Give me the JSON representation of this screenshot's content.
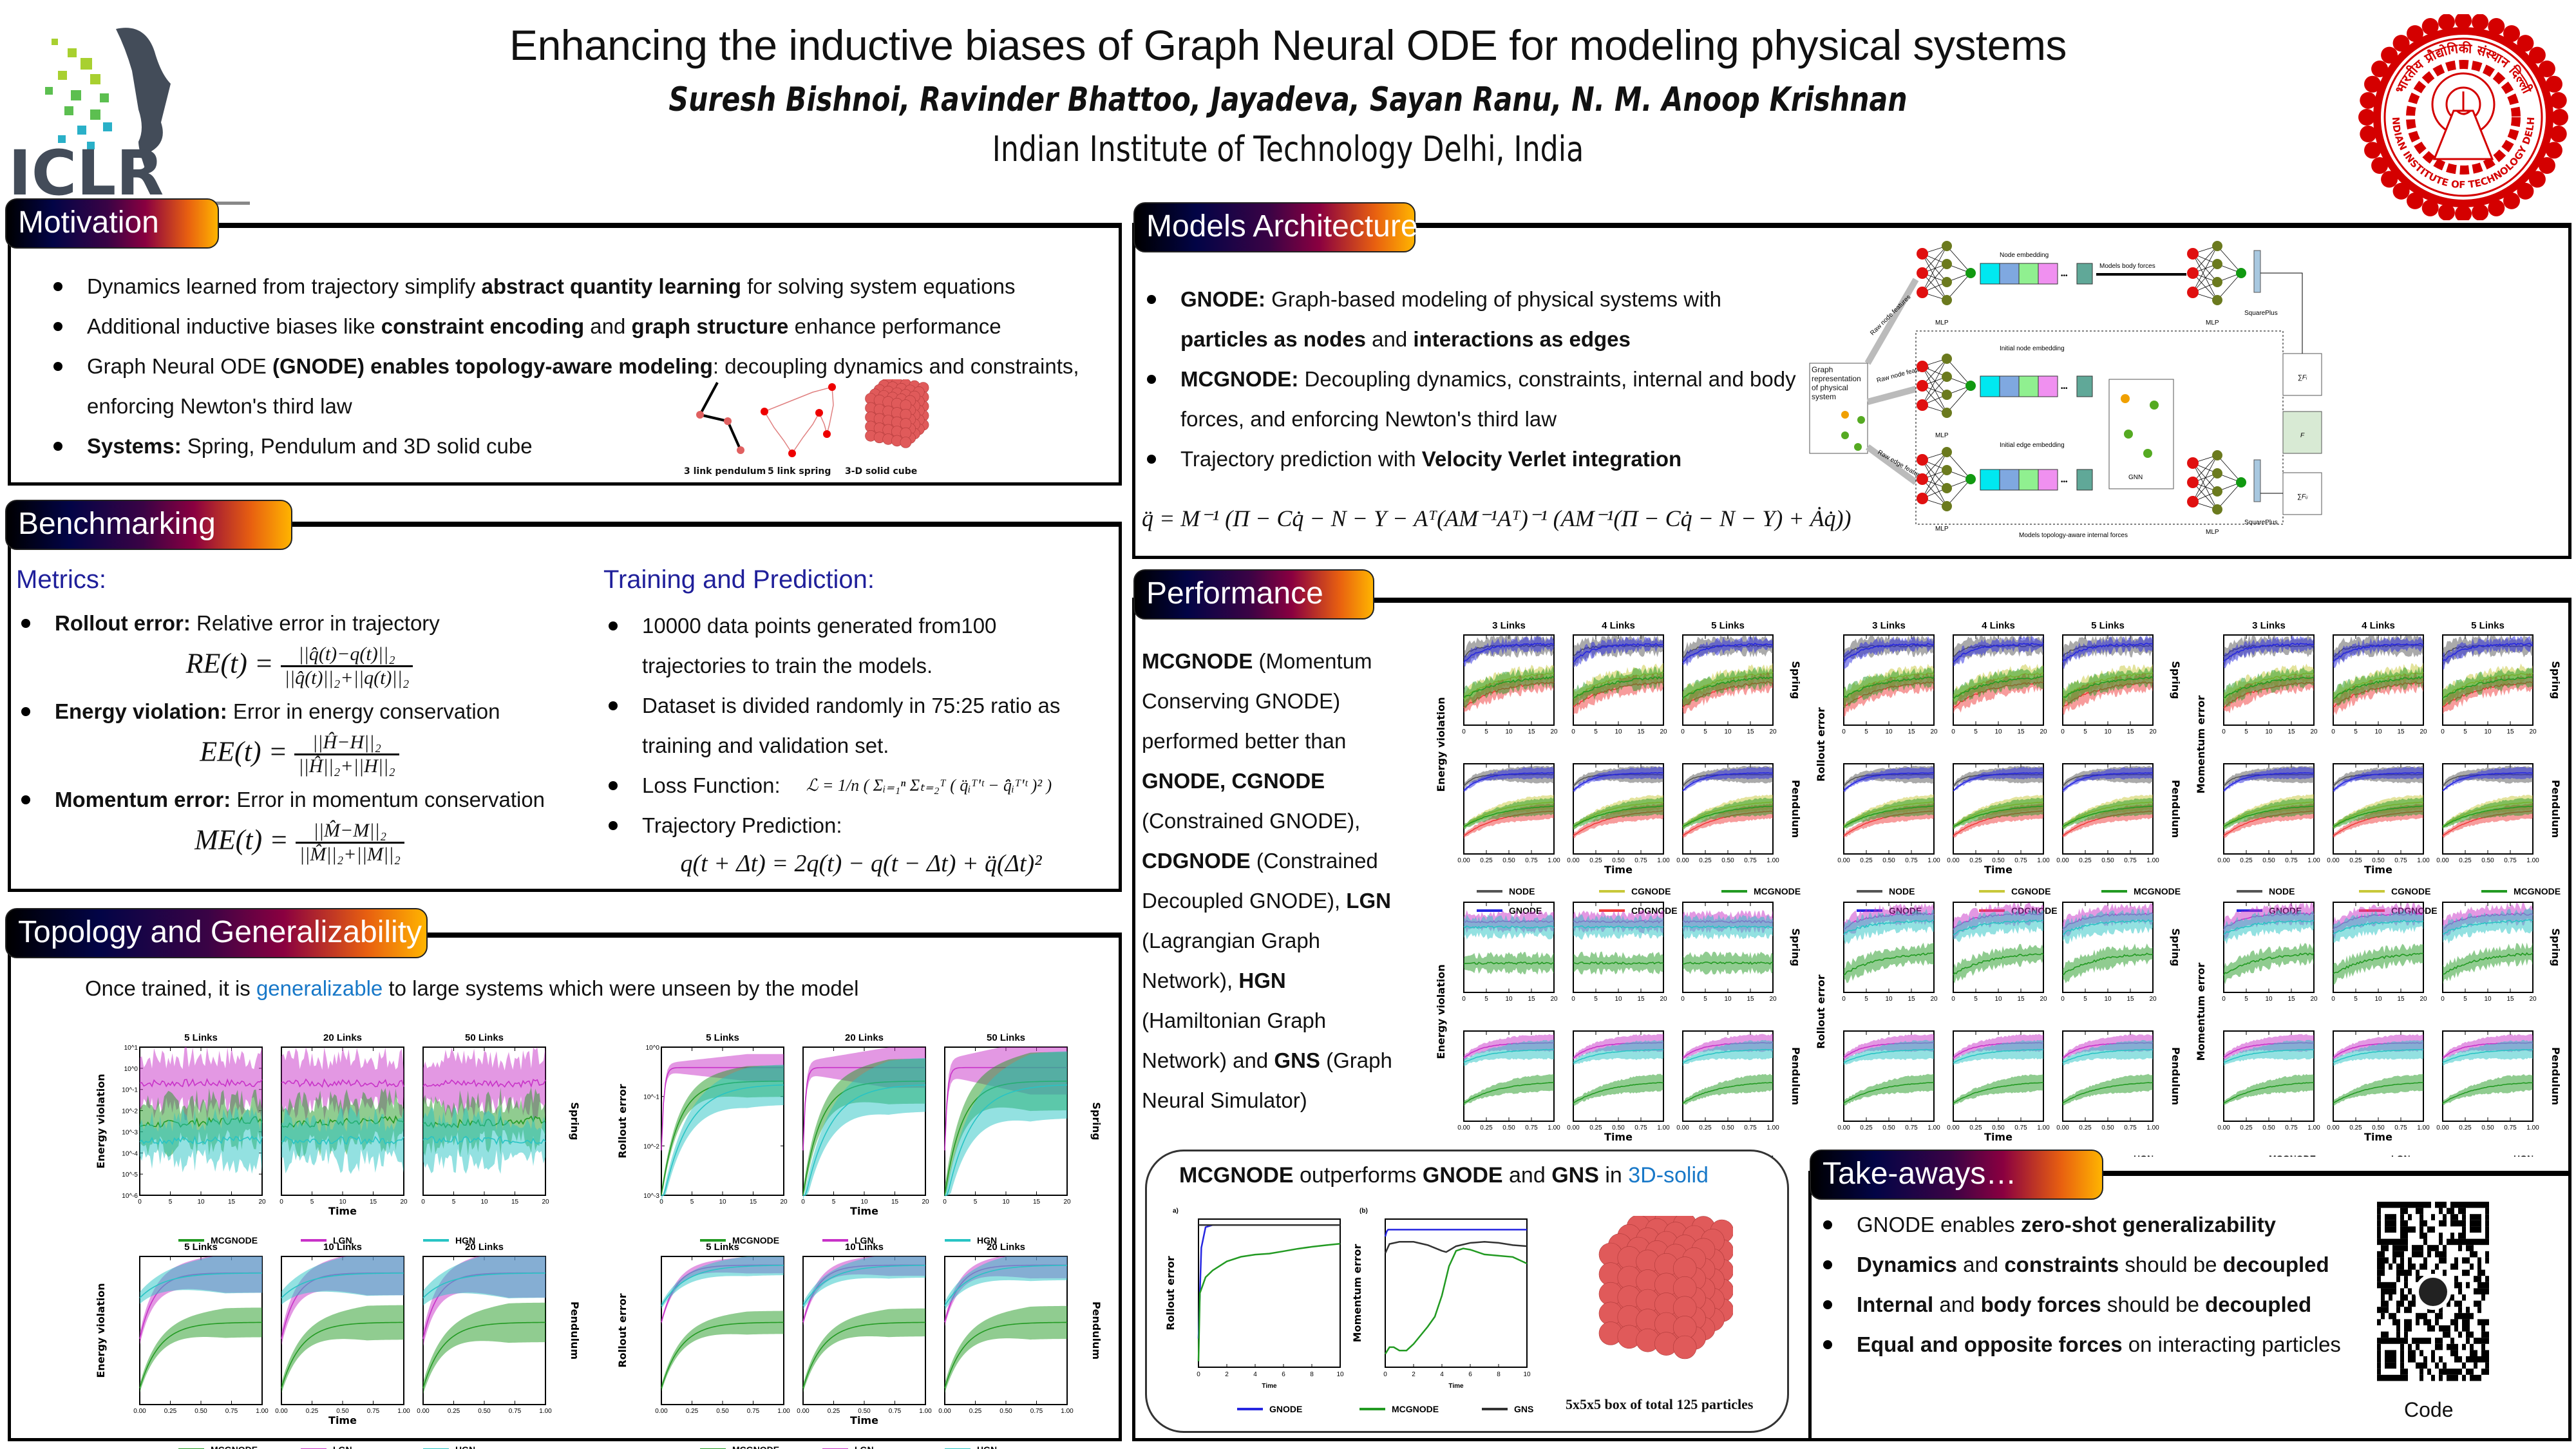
{
  "header": {
    "title": "Enhancing the inductive biases of Graph Neural ODE for modeling physical systems",
    "authors": "Suresh Bishnoi, Ravinder Bhattoo, Jayadeva, Sayan Ranu, N. M. Anoop Krishnan",
    "affiliation": "Indian Institute of Technology Delhi, India",
    "left_logo": {
      "text": "ICLR",
      "icon": "iclr-logo-icon"
    },
    "right_logo": {
      "text_top": "भारतीय प्रौद्योगिकी संस्थान दिल्ली",
      "text_bottom": "INDIAN INSTITUTE OF TECHNOLOGY DELHI",
      "icon": "iit-delhi-seal-icon",
      "color": "#d40000"
    }
  },
  "colors": {
    "tab_gradient": [
      "#000000",
      "#020446",
      "#3a0345",
      "#8a0040",
      "#e86010",
      "#ffb400"
    ],
    "blue_heading": "#1f1f9a",
    "link_blue": "#1878c8",
    "NODE": "#555555",
    "GNODE": "#2626e0",
    "CGNODE": "#c8c83a",
    "CDGNODE": "#f03a3a",
    "MCGNODE": "#229a22",
    "LGN": "#c832c8",
    "HGN": "#28c4c4",
    "GNS": "#333333"
  },
  "motivation": {
    "title": "Motivation",
    "bullets": [
      {
        "parts": [
          [
            "Dynamics learned from trajectory simplify ",
            false
          ],
          [
            "abstract quantity learning",
            true
          ],
          [
            " for solving system equations",
            false
          ]
        ]
      },
      {
        "parts": [
          [
            "Additional inductive biases like ",
            false
          ],
          [
            "constraint encoding",
            true
          ],
          [
            " and ",
            false
          ],
          [
            "graph structure",
            true
          ],
          [
            " enhance performance",
            false
          ]
        ]
      },
      {
        "parts": [
          [
            "Graph Neural ODE ",
            false
          ],
          [
            "(GNODE) enables topology-aware modeling",
            true
          ],
          [
            ": decoupling dynamics and constraints, enforcing Newton's third law",
            false
          ]
        ]
      },
      {
        "parts": [
          [
            "Systems:",
            true
          ],
          [
            " Spring, Pendulum and 3D solid cube",
            false
          ]
        ]
      }
    ],
    "figure_labels": [
      "3 link pendulum",
      "5 link spring",
      "3-D solid cube"
    ]
  },
  "benchmarking": {
    "title": "Benchmarking",
    "metrics_heading": "Metrics:",
    "metrics": [
      {
        "name": "Rollout error:",
        "desc": " Relative error in trajectory",
        "lhs": "RE(t) =",
        "num": "||q̂(t)−q(t)||₂",
        "den": "||q̂(t)||₂+||q(t)||₂"
      },
      {
        "name": "Energy violation:",
        "desc": " Error in energy conservation",
        "lhs": "EE(t) =",
        "num": "||Ĥ−H||₂",
        "den": "||Ĥ||₂+||H||₂"
      },
      {
        "name": "Momentum error:",
        "desc": " Error in momentum conservation",
        "lhs": "ME(t) =",
        "num": "||M̂−M||₂",
        "den": "||M̂||₂+||M||₂"
      }
    ],
    "training_heading": "Training and Prediction:",
    "training": [
      "10000 data points generated from100 trajectories to train the models.",
      "Dataset is divided randomly in 75:25 ratio as training and validation set.",
      "Loss Function:",
      "Trajectory Prediction:"
    ],
    "loss_eq": "ℒ = 1/n ( Σᵢ₌₁ⁿ Σₜ₌₂ᵀ ( q̈ᵢᵀ'ᵗ − q̂̈ᵢᵀ'ᵗ )² )",
    "traj_eq": "q(t + Δt) = 2q(t) − q(t − Δt) + q̈(Δt)²"
  },
  "topology": {
    "title": "Topology and Generalizability",
    "intro_pre": "Once trained, it is ",
    "intro_hl": "generalizable",
    "intro_post": " to large systems which were unseen by the model",
    "legend": [
      "MCGNODE",
      "LGN",
      "HGN"
    ]
  },
  "architecture": {
    "title": "Models Architecture",
    "bullets": [
      {
        "parts": [
          [
            "GNODE:",
            true
          ],
          [
            " Graph-based modeling of physical systems with ",
            false
          ],
          [
            "particles as nodes",
            true
          ],
          [
            " and ",
            false
          ],
          [
            "interactions as edges",
            true
          ]
        ]
      },
      {
        "parts": [
          [
            "MCGNODE:",
            true
          ],
          [
            " Decoupling dynamics, constraints, internal and body forces, and enforcing Newton's third law",
            false
          ]
        ]
      },
      {
        "parts": [
          [
            "Trajectory prediction with ",
            false
          ],
          [
            "Velocity Verlet integration",
            true
          ]
        ]
      }
    ],
    "equation": "q̈ = M⁻¹ (Π − Cq̇ − N − Υ − Aᵀ(AM⁻¹Aᵀ)⁻¹ (AM⁻¹(Π − Cq̇ − N − Υ) + Ȧq̇))",
    "diagram": {
      "input_box": "Graph representation of physical system",
      "arrow_labels": [
        "Raw node features",
        "Raw node features",
        "Raw edge features"
      ],
      "mlp": "MLP",
      "node_embedding": "Node embedding",
      "body_forces": "Models body forces",
      "initial_node_embedding": "Initial node embedding",
      "initial_edge_embedding": "Initial edge embedding",
      "gnn": "GNN",
      "squareplus": "SquarePlus",
      "sum_fi": "∑Fᵢ",
      "force": "F",
      "sum_fij": "∑Fᵢⱼ",
      "dashed_caption": "Models topology-aware internal forces"
    }
  },
  "performance": {
    "title": "Performance",
    "text_parts": [
      [
        "MCGNODE",
        true
      ],
      [
        " (Momentum Conserving GNODE) performed better than ",
        false
      ],
      [
        "GNODE, CGNODE",
        true
      ],
      [
        " (Constrained GNODE), ",
        false
      ],
      [
        "CDGNODE",
        true
      ],
      [
        " (Constrained Decoupled GNODE), ",
        false
      ],
      [
        "LGN",
        true
      ],
      [
        " (Lagrangian Graph Network), ",
        false
      ],
      [
        "HGN",
        true
      ],
      [
        " (Hamiltonian Graph Network) and ",
        false
      ],
      [
        "GNS",
        true
      ],
      [
        " (Graph Neural Simulator)",
        false
      ]
    ],
    "legend_a": [
      "NODE",
      "CGNODE",
      "MCGNODE",
      "GNODE",
      "CDGNODE"
    ],
    "legend_b": [
      "MCGNODE",
      "LGN",
      "HGN"
    ]
  },
  "solid3d": {
    "title_parts": [
      [
        "MCGNODE",
        true
      ],
      [
        " outperforms ",
        false
      ],
      [
        "GNODE",
        true
      ],
      [
        " and ",
        false
      ],
      [
        "GNS",
        true
      ],
      [
        " in ",
        false
      ],
      [
        "3D-solid",
        "blue"
      ]
    ],
    "caption": "5x5x5 box of total 125 particles",
    "legend": [
      "GNODE",
      "MCGNODE",
      "GNS"
    ]
  },
  "takeaways": {
    "title": "Take-aways…",
    "bullets": [
      {
        "parts": [
          [
            "GNODE enables ",
            false
          ],
          [
            "zero-shot generalizability",
            true
          ]
        ]
      },
      {
        "parts": [
          [
            "Dynamics",
            true
          ],
          [
            " and ",
            false
          ],
          [
            "constraints",
            true
          ],
          [
            " should be ",
            false
          ],
          [
            "decoupled",
            true
          ]
        ]
      },
      {
        "parts": [
          [
            "Internal",
            true
          ],
          [
            " and ",
            false
          ],
          [
            "body forces",
            true
          ],
          [
            "  should be ",
            false
          ],
          [
            "decoupled",
            true
          ]
        ]
      },
      {
        "parts": [
          [
            "Equal and opposite forces",
            true
          ],
          [
            " on interacting particles",
            false
          ]
        ]
      }
    ],
    "qr_label": "Code"
  },
  "chart_data": [
    {
      "id": "topo-spring-ev",
      "type": "line",
      "ylabel": "Energy violation",
      "xlabel": "Time",
      "row_label": "Spring",
      "yscale": "log",
      "ylim": [
        1e-06,
        10
      ],
      "xlim": [
        0,
        20
      ],
      "xticks": [
        0,
        5,
        10,
        15,
        20
      ],
      "yticks": [
        "10^1",
        "10^0",
        "10^-1",
        "10^-2",
        "10^-3",
        "10^-4",
        "10^-5",
        "10^-6"
      ],
      "panels": [
        "5 Links",
        "20 Links",
        "50 Links"
      ],
      "series": [
        {
          "name": "LGN",
          "level": 0.2,
          "trend": 0,
          "band": 1.2
        },
        {
          "name": "MCGNODE",
          "level": 0.002,
          "trend": 0.3,
          "band": 1.0
        },
        {
          "name": "HGN",
          "level": 0.0004,
          "trend": 0,
          "band": 1.0
        }
      ]
    },
    {
      "id": "topo-spring-re",
      "type": "line",
      "ylabel": "Rollout error",
      "xlabel": "Time",
      "row_label": "Spring",
      "yscale": "log",
      "ylim": [
        0.001,
        2
      ],
      "xlim": [
        0,
        20
      ],
      "xticks": [
        0,
        5,
        10,
        15,
        20
      ],
      "yticks": [
        "10^0",
        "10^-1",
        "10^-2",
        "10^-3"
      ],
      "panels": [
        "5 Links",
        "20 Links",
        "50 Links"
      ],
      "series": [
        {
          "name": "LGN",
          "start": 0.01,
          "end": 0.7,
          "rise": 0.05,
          "band": 0.3
        },
        {
          "name": "MCGNODE",
          "start": 0.001,
          "end": 0.35,
          "rise": 0.35,
          "band": 0.35
        },
        {
          "name": "HGN",
          "start": 0.0005,
          "end": 0.3,
          "rise": 0.5,
          "band": 0.45
        }
      ]
    },
    {
      "id": "topo-pend-ev",
      "type": "line",
      "ylabel": "Energy violation",
      "xlabel": "Time",
      "row_label": "Pendulum",
      "yscale": "log",
      "ylim": [
        1e-09,
        1
      ],
      "xlim": [
        0,
        1
      ],
      "xticks": [
        "0.00",
        "0.25",
        "0.50",
        "0.75",
        "1.00"
      ],
      "panels": [
        "5 Links",
        "10 Links",
        "20 Links"
      ],
      "series": [
        {
          "name": "LGN",
          "start": 1e-05,
          "end": 0.1,
          "rise": 0.3,
          "band": 1.2
        },
        {
          "name": "HGN",
          "start": 0.003,
          "end": 0.1,
          "rise": 0.5,
          "band": 1.2
        },
        {
          "name": "MCGNODE",
          "start": 1e-08,
          "end": 0.0001,
          "rise": 0.4,
          "band": 0.9
        }
      ]
    },
    {
      "id": "topo-pend-re",
      "type": "line",
      "ylabel": "Rollout error",
      "xlabel": "Time",
      "row_label": "Pendulum",
      "yscale": "log",
      "ylim": [
        1e-09,
        1
      ],
      "xlim": [
        0,
        1
      ],
      "xticks": [
        "0.00",
        "0.25",
        "0.50",
        "0.75",
        "1.00"
      ],
      "panels": [
        "5 Links",
        "10 Links",
        "20 Links"
      ],
      "series": [
        {
          "name": "LGN",
          "start": 0.0001,
          "end": 0.3,
          "rise": 0.3,
          "band": 0.5
        },
        {
          "name": "HGN",
          "start": 0.001,
          "end": 0.3,
          "rise": 0.5,
          "band": 0.6
        },
        {
          "name": "MCGNODE",
          "start": 1e-08,
          "end": 0.0001,
          "rise": 0.4,
          "band": 0.7
        }
      ]
    },
    {
      "id": "perf-ev-a",
      "type": "line",
      "ylabel": "Energy violation",
      "xlabel": "Time",
      "rows": [
        "Spring",
        "Pendulum"
      ],
      "yscale": "log",
      "panels": [
        "3 Links",
        "4 Links",
        "5 Links"
      ],
      "series": [
        "NODE",
        "GNODE",
        "CGNODE",
        "CDGNODE",
        "MCGNODE"
      ]
    },
    {
      "id": "perf-re-a",
      "type": "line",
      "ylabel": "Rollout error",
      "xlabel": "Time",
      "rows": [
        "Spring",
        "Pendulum"
      ],
      "yscale": "log",
      "panels": [
        "3 Links",
        "4 Links",
        "5 Links"
      ],
      "series": [
        "NODE",
        "GNODE",
        "CGNODE",
        "CDGNODE",
        "MCGNODE"
      ]
    },
    {
      "id": "perf-me-a",
      "type": "line",
      "ylabel": "Momentum error",
      "xlabel": "Time",
      "rows": [
        "Spring",
        "Pendulum"
      ],
      "yscale": "log",
      "panels": [
        "3 Links",
        "4 Links",
        "5 Links"
      ],
      "series": [
        "NODE",
        "GNODE",
        "CGNODE",
        "CDGNODE",
        "MCGNODE"
      ]
    },
    {
      "id": "perf-ev-b",
      "type": "line",
      "ylabel": "Energy violation",
      "xlabel": "Time",
      "rows": [
        "Spring",
        "Pendulum"
      ],
      "yscale": "log",
      "series": [
        "MCGNODE",
        "LGN",
        "HGN"
      ]
    },
    {
      "id": "perf-re-b",
      "type": "line",
      "ylabel": "Rollout error",
      "xlabel": "Time",
      "rows": [
        "Spring",
        "Pendulum"
      ],
      "yscale": "log",
      "series": [
        "MCGNODE",
        "LGN",
        "HGN"
      ]
    },
    {
      "id": "perf-me-b",
      "type": "line",
      "ylabel": "Momentum error",
      "xlabel": "Time",
      "rows": [
        "Spring",
        "Pendulum"
      ],
      "yscale": "log",
      "series": [
        "MCGNODE",
        "LGN",
        "HGN"
      ]
    },
    {
      "id": "solid-re",
      "type": "line",
      "label": "a)",
      "ylabel": "Rollout error",
      "xlabel": "Time",
      "yscale": "log",
      "ylim": [
        1e-06,
        1
      ],
      "xlim": [
        0,
        10
      ],
      "xticks": [
        0,
        2,
        4,
        6,
        8,
        10
      ],
      "series": [
        {
          "name": "GNODE",
          "x": [
            0,
            0.2,
            0.5,
            1,
            10
          ],
          "y": [
            1e-05,
            0.1,
            0.8,
            1,
            1
          ]
        },
        {
          "name": "GNS",
          "x": [
            0,
            10
          ],
          "y": [
            1,
            1
          ]
        },
        {
          "name": "MCGNODE",
          "x": [
            0,
            0.1,
            0.5,
            1,
            2,
            3,
            4,
            5,
            6,
            7,
            8,
            9,
            10
          ],
          "y": [
            1e-06,
            0.001,
            0.005,
            0.01,
            0.025,
            0.04,
            0.05,
            0.055,
            0.07,
            0.09,
            0.11,
            0.13,
            0.15
          ]
        }
      ]
    },
    {
      "id": "solid-me",
      "type": "line",
      "label": "(b)",
      "ylabel": "Momentum error",
      "xlabel": "Time",
      "yscale": "log",
      "ylim": [
        0.25,
        1.05
      ],
      "xlim": [
        0,
        10
      ],
      "xticks": [
        0,
        2,
        4,
        6,
        8,
        10
      ],
      "yticks": [
        "10^0",
        "6×10^-1",
        "4×10^-1",
        "3×10^-1"
      ],
      "series": [
        {
          "name": "GNODE",
          "x": [
            0,
            0.1,
            0.2,
            10
          ],
          "y": [
            0.93,
            0.98,
            1,
            1
          ]
        },
        {
          "name": "GNS",
          "x": [
            0,
            0.3,
            1,
            2,
            3,
            4,
            4.3,
            5,
            6,
            7,
            8,
            9,
            10
          ],
          "y": [
            0.78,
            0.86,
            0.88,
            0.88,
            0.85,
            0.8,
            0.79,
            0.84,
            0.87,
            0.88,
            0.87,
            0.85,
            0.84
          ]
        },
        {
          "name": "MCGNODE",
          "x": [
            0,
            0.3,
            0.6,
            1,
            1.5,
            2,
            3,
            3.5,
            4,
            4.5,
            5,
            5.5,
            6,
            7,
            8,
            9,
            10
          ],
          "y": [
            0.27,
            0.29,
            0.29,
            0.28,
            0.28,
            0.3,
            0.36,
            0.4,
            0.5,
            0.68,
            0.8,
            0.82,
            0.81,
            0.77,
            0.76,
            0.75,
            0.7
          ]
        }
      ]
    }
  ]
}
